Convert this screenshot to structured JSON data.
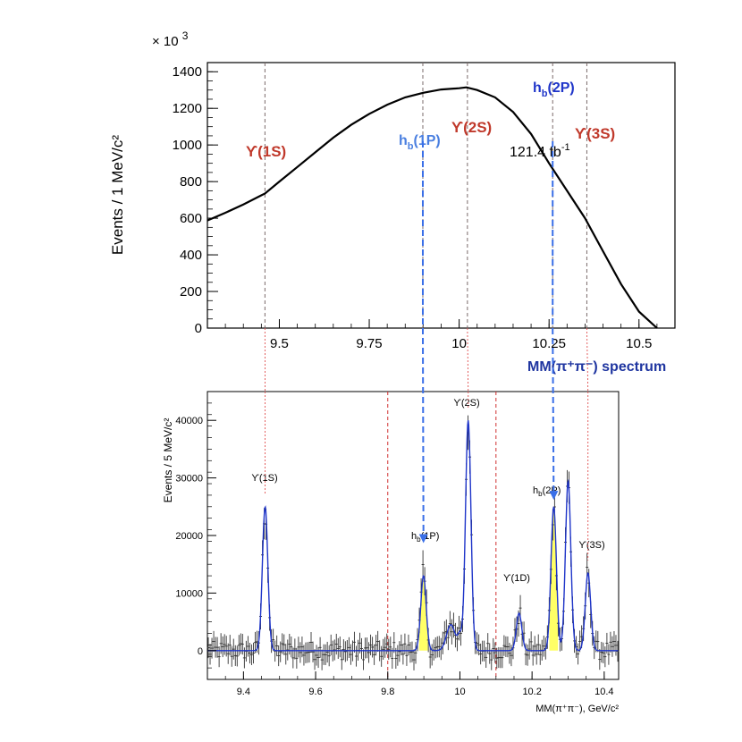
{
  "chart_data": [
    {
      "type": "line",
      "title": "",
      "scale_label": "× 10",
      "scale_exponent": "3",
      "ylabel": "Events / 1 MeV/c²",
      "xlim": [
        9.3,
        10.6
      ],
      "ylim": [
        0,
        1450
      ],
      "xticks": [
        9.5,
        9.75,
        10,
        10.25,
        10.5
      ],
      "xtick_labels": [
        "9.5",
        "9.75",
        "10",
        "10.25",
        "10.5"
      ],
      "yticks": [
        0,
        200,
        400,
        600,
        800,
        1000,
        1200,
        1400
      ],
      "ytick_labels": [
        "0",
        "200",
        "400",
        "600",
        "800",
        "1000",
        "1200",
        "1400"
      ],
      "series": [
        {
          "name": "MM(π⁺π⁻) spectrum",
          "x": [
            9.3,
            9.35,
            9.4,
            9.45,
            9.46,
            9.5,
            9.55,
            9.6,
            9.65,
            9.7,
            9.75,
            9.8,
            9.85,
            9.9,
            9.95,
            10.0,
            10.02,
            10.05,
            10.1,
            10.15,
            10.2,
            10.25,
            10.3,
            10.35,
            10.4,
            10.45,
            10.5,
            10.55
          ],
          "values": [
            588,
            630,
            675,
            725,
            735,
            800,
            880,
            960,
            1040,
            1110,
            1170,
            1220,
            1260,
            1285,
            1303,
            1310,
            1315,
            1300,
            1260,
            1180,
            1060,
            900,
            750,
            600,
            420,
            240,
            90,
            0
          ]
        }
      ],
      "reference_lines": [
        {
          "x": 9.46,
          "color": "#7a6a6a"
        },
        {
          "x": 9.899,
          "color": "#7a6a6a"
        },
        {
          "x": 10.023,
          "color": "#7a6a6a"
        },
        {
          "x": 10.26,
          "color": "#7a6a6a"
        },
        {
          "x": 10.355,
          "color": "#7a6a6a"
        }
      ],
      "annotations": [
        {
          "text": "ϒ(1S)",
          "color": "#c0392b"
        },
        {
          "text": "ϒ(2S)",
          "color": "#c0392b"
        },
        {
          "text": "ϒ(3S)",
          "color": "#c0392b"
        },
        {
          "text": "h",
          "sub": "b",
          "tail": "(1P)",
          "color": "#4a7fe0"
        },
        {
          "text": "h",
          "sub": "b",
          "tail": "(2P)",
          "color": "#1f35c9"
        },
        {
          "text": "121.4 fb",
          "sup": "-1",
          "color": "#000000"
        }
      ],
      "footer_label": {
        "text": "MM(π⁺π⁻) spectrum",
        "color": "#1f35a0"
      }
    },
    {
      "type": "scatter",
      "title": "",
      "ylabel": "Events / 5 MeV/c²",
      "xlabel": "MM(π⁺π⁻), GeV/c²",
      "xlim": [
        9.3,
        10.44
      ],
      "ylim": [
        -5000,
        45000
      ],
      "xticks": [
        9.4,
        9.6,
        9.8,
        10.0,
        10.2,
        10.4
      ],
      "xtick_labels": [
        "9.4",
        "9.6",
        "9.8",
        "10",
        "10.2",
        "10.4"
      ],
      "yticks": [
        0,
        10000,
        20000,
        30000,
        40000
      ],
      "ytick_labels": [
        "0",
        "10000",
        "20000",
        "30000",
        "40000"
      ],
      "peaks": [
        {
          "label": "ϒ(1S)",
          "x": 9.46,
          "height": 25000
        },
        {
          "label": "h",
          "sub": "b",
          "tail": "(1P)",
          "x": 9.899,
          "height": 13000
        },
        {
          "label": "ϒ(2S)",
          "x": 10.023,
          "height": 40000
        },
        {
          "label": "ϒ(1D)",
          "x": 10.164,
          "height": 6500
        },
        {
          "label": "h",
          "sub": "b",
          "tail": "(2P)",
          "x": 10.26,
          "height": 25000
        },
        {
          "label": "",
          "x": 10.3,
          "height": 29500
        },
        {
          "label": "ϒ(3S)",
          "x": 10.355,
          "height": 13500
        }
      ],
      "fit_color": "#1f35c9",
      "data_color": "#333333",
      "highlight_color": "#ffff66",
      "dashed_lines_x": [
        9.8,
        10.1
      ],
      "dashed_line_color": "#d03030"
    }
  ]
}
